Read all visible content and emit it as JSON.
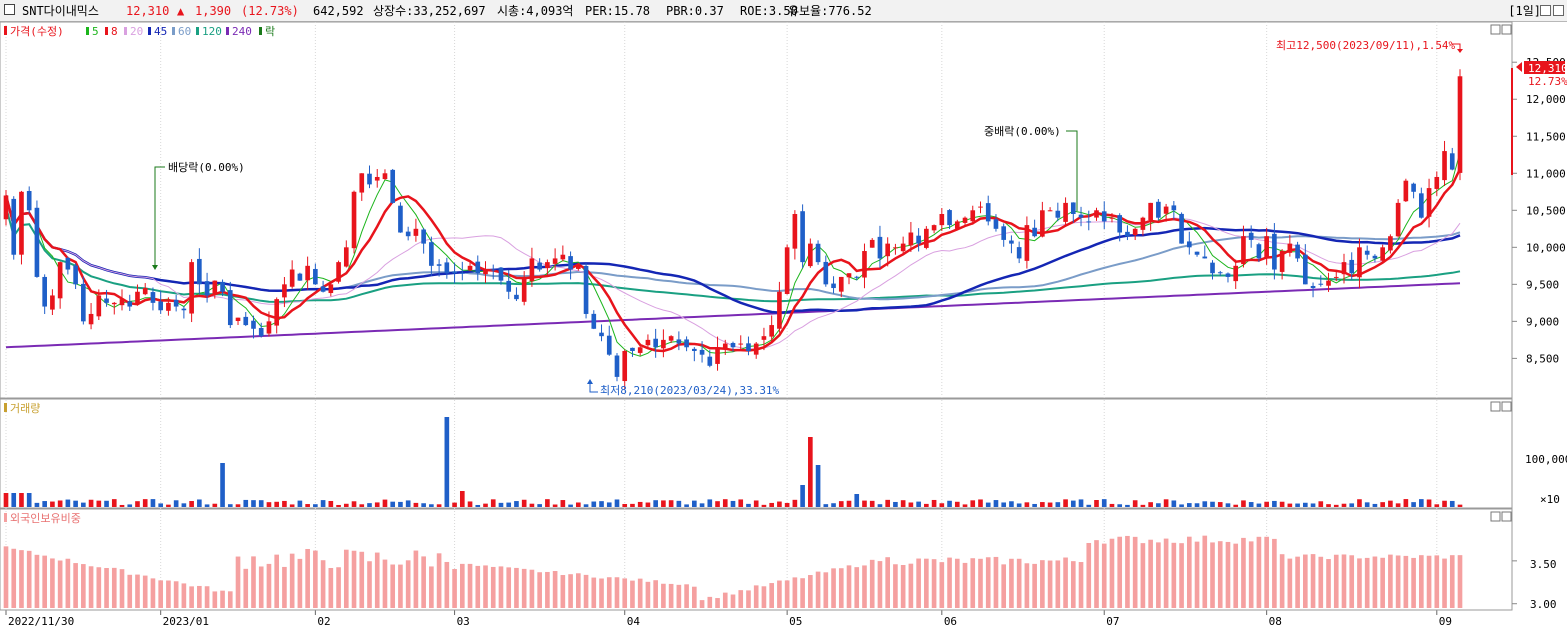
{
  "header": {
    "name": "SNT다이내믹스",
    "price": "12,310",
    "change_arrow": "▲",
    "change": "1,390",
    "change_pct": "(12.73%)",
    "volume": "642,592",
    "listed_shares": "상장수:33,252,697",
    "market_cap": "시총:4,093억",
    "per": "PER:15.78",
    "pbr": "PBR:0.37",
    "roe": "ROE:3.50",
    "float_ratio": "유보율:776.52",
    "period": "[1일]"
  },
  "colors": {
    "up": "#e8141c",
    "down": "#1f5fc8",
    "ma5": "#1cb51c",
    "ma8": "#e8141c",
    "ma20": "#b44bc4",
    "ma45": "#1426b4",
    "ma60": "#7a9cc8",
    "ma120": "#1aa082",
    "ma240": "#7a2ab4",
    "foreign": "#f5a0a0"
  },
  "legend": {
    "price_label": "가격(수정)",
    "ma5": "5",
    "ma8": "8",
    "ma20": "20",
    "ma45": "45",
    "ma60": "60",
    "ma120": "120",
    "ma240": "240",
    "ex_rights": "락",
    "volume_label": "거래량",
    "foreign_label": "외국인보유비중"
  },
  "annotations": {
    "high": "최고12,500(2023/09/11),1.54%",
    "low": "최저8,210(2023/03/24),33.31%",
    "dividend": "배당락(0.00%)",
    "bonus": "중배락(0.00%)",
    "current_price": "12,310",
    "current_pct": "12.73%"
  },
  "chart_data": [
    {
      "type": "candlestick",
      "title": "가격(수정)",
      "ylim": [
        8100,
        12800
      ],
      "y_ticks": [
        "12,500",
        "12,000",
        "11,500",
        "11,000",
        "10,500",
        "10,000",
        "9,500",
        "9,000",
        "8,500"
      ],
      "x_ticks": [
        "2022/11/30",
        "2023/01",
        "02",
        "03",
        "04",
        "05",
        "06",
        "07",
        "08",
        "09"
      ],
      "close": [
        10700,
        9900,
        10750,
        10500,
        9600,
        9200,
        9350,
        9800,
        9700,
        9500,
        9000,
        9100,
        9350,
        9250,
        9250,
        9300,
        9200,
        9400,
        9450,
        9250,
        9150,
        9250,
        9200,
        9150,
        9800,
        9500,
        9350,
        9550,
        9400,
        8950,
        9050,
        8950,
        8900,
        8800,
        9000,
        9300,
        9500,
        9700,
        9550,
        9750,
        9500,
        9400,
        9500,
        9800,
        10000,
        10750,
        11000,
        10850,
        10950,
        11000,
        10600,
        10200,
        10150,
        10250,
        10050,
        9750,
        9750,
        9650,
        9650,
        9650,
        9750,
        9650,
        9700,
        9700,
        9550,
        9400,
        9300,
        9600,
        9850,
        9700,
        9800,
        9850,
        9900,
        9700,
        9750,
        9100,
        8900,
        8800,
        8550,
        8250,
        8600,
        8600,
        8650,
        8750,
        8650,
        8750,
        8800,
        8700,
        8650,
        8600,
        8550,
        8400,
        8650,
        8700,
        8650,
        8700,
        8600,
        8700,
        8800,
        8950,
        9400,
        10000,
        10450,
        9800,
        10050,
        9800,
        9500,
        9450,
        9600,
        9650,
        9600,
        9950,
        10100,
        9850,
        10050,
        10000,
        10050,
        10200,
        10050,
        10250,
        10300,
        10450,
        10300,
        10350,
        10400,
        10500,
        10550,
        10350,
        10250,
        10100,
        10050,
        9850,
        10300,
        10150,
        10500,
        10500,
        10400,
        10600,
        10450,
        10400,
        10350,
        10500,
        10350,
        10400,
        10200,
        10150,
        10250,
        10400,
        10600,
        10400,
        10550,
        10500,
        10050,
        10000,
        9900,
        9850,
        9650,
        9650,
        9600,
        9750,
        10150,
        10100,
        9850,
        10150,
        9700,
        9950,
        10050,
        9850,
        9500,
        9450,
        9500,
        9550,
        9600,
        9800,
        9650,
        10000,
        9900,
        9850,
        10000,
        10150,
        10600,
        10900,
        10750,
        10400,
        10800,
        10950,
        11300,
        11050,
        12310
      ],
      "price_candles_note": "Candles approximated from visible figure; one element per candle drawn by script",
      "high_point": 12500,
      "low_point": 8210,
      "last": 12310
    },
    {
      "type": "bar",
      "title": "거래량",
      "y_ticks": [
        "100,000",
        "×10"
      ]
    },
    {
      "type": "bar",
      "title": "외국인보유비중",
      "y_ticks": [
        "3.50",
        "3.00"
      ],
      "ylim": [
        2.95,
        4.0
      ]
    }
  ]
}
